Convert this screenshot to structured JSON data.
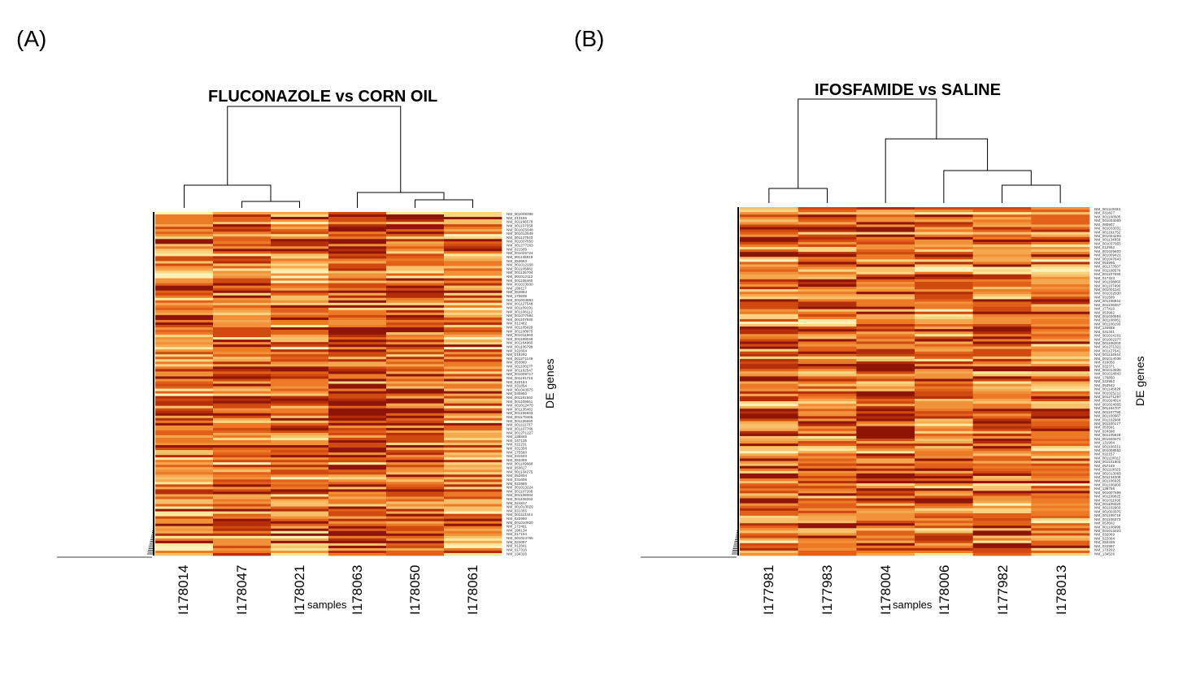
{
  "panels": {
    "a": {
      "letter": "(A)"
    },
    "b": {
      "letter": "(B)"
    }
  },
  "chart_data": [
    {
      "type": "heatmap",
      "panel": "(A)",
      "title": "FLUCONAZOLE vs CORN OIL",
      "xlabel": "samples",
      "ylabel": "DE genes",
      "columns": [
        "I178014",
        "I178047",
        "I178021",
        "I178063",
        "I178050",
        "I178061"
      ],
      "column_dendrogram": "((I178014,(I178047,I178021)),(I178063,(I178050,I178061)))",
      "row_count": 140,
      "row_labels": [
        "NM_001008398",
        "NM_013166",
        "NM_001166578",
        "NM_001107558",
        "NM_001025048",
        "NM_001012549",
        "NM_001127543",
        "NM_001037650",
        "NM_001277263",
        "NM_021589",
        "NM_001025724",
        "NM_001135919",
        "NM_053663",
        "NM_001012158",
        "NM_001105882",
        "NM_001135704",
        "NM_001012112",
        "NM_001106460",
        "NM_001013930",
        "NM_199117",
        "NM_053883",
        "NM_173838",
        "NM_001033883",
        "NM_001127548",
        "NM_001109191",
        "NM_001108112",
        "NM_001077584",
        "NM_001107930",
        "NM_012482",
        "NM_001105929",
        "NM_001100970",
        "NM_001011963",
        "NM_001169046",
        "NM_001164960",
        "NM_001106799",
        "NM_022664",
        "NM_019292",
        "NM_001271149",
        "NM_053880",
        "NM_001100277",
        "NM_001162547",
        "NM_001009717",
        "NM_001191710",
        "NM_022184",
        "NM_031854",
        "NM_001043975",
        "NM_030860",
        "NM_001191562",
        "NM_001109551",
        "NM_001012470",
        "NM_001135481",
        "NM_001166933",
        "NM_001170465",
        "NM_001135550",
        "NM_001112737",
        "NM_001107786",
        "NM_001271227",
        "NM_138846",
        "NM_147135",
        "NM_022231",
        "NM_031358",
        "NM_175580",
        "NM_031503",
        "NM_053359",
        "NM_001109668",
        "NM_053617",
        "NM_001134275",
        "NM_052804",
        "NM_031606",
        "NM_022865",
        "NM_001013224",
        "NM_001107268",
        "NM_001108084",
        "NM_001108262",
        "NM_024817",
        "NM_001013029",
        "NM_031355",
        "NM_001113344",
        "NM_022990",
        "NM_001010920",
        "NM_172461",
        "NM_198134",
        "NM_017154",
        "NM_001024765",
        "NM_022097",
        "NM_012841",
        "NM_017316",
        "NM_134326"
      ]
    },
    {
      "type": "heatmap",
      "panel": "(B)",
      "title": "IFOSFAMIDE vs SALINE",
      "xlabel": "samples",
      "ylabel": "DE genes",
      "columns": [
        "I177981",
        "I177983",
        "I178004",
        "I178006",
        "I177982",
        "I178013"
      ],
      "column_dendrogram": "((I177981,I177983),(I178004,(I178006,(I177982,I178013))))",
      "row_count": 140,
      "row_labels": [
        "NM_001110023",
        "NM_031827",
        "NM_001100505",
        "NM_001033069",
        "NM_080907",
        "NM_001033031",
        "NM_001191752",
        "NM_001024293",
        "NM_001134856",
        "NM_001037955",
        "NM_012552",
        "NM_001025603",
        "NM_001009421",
        "NM_001047843",
        "NM_053996",
        "NM_001173507",
        "NM_001108576",
        "NM_001107690",
        "NM_017323",
        "NM_001108960",
        "NM_001107490",
        "NM_001001181",
        "NM_001032930",
        "NM_031599",
        "NM_001108944",
        "NM_001106067",
        "NM_177419",
        "NM_053982",
        "NM_001030891",
        "NM_001108061",
        "NM_001106193",
        "NM_134689",
        "NM_031341",
        "NM_001014161",
        "NM_001002277",
        "NM_001108203",
        "NM_001271322",
        "NM_001127541",
        "NM_001134644",
        "NM_001014038",
        "NM_016056",
        "NM_022371",
        "NM_001013935",
        "NM_001014843",
        "NM_176850",
        "NM_022952",
        "NM_053942",
        "NM_001145828",
        "NM_001025212",
        "NM_001271297",
        "NM_001024814",
        "NM_001024055",
        "NM_001164707",
        "NM_001107790",
        "NM_001100987",
        "NM_001102988",
        "NM_001100177",
        "NM_053591",
        "NM_024398",
        "NM_001105928",
        "NM_001030974",
        "NM_131904",
        "NM_001108312",
        "NM_001008552",
        "NM_022157",
        "NM_001110022",
        "NM_001101903",
        "NM_057169",
        "NM_001110025",
        "NM_001013068",
        "NM_001134009",
        "NM_001106925",
        "NM_001106903",
        "NM_138758",
        "NM_001007699",
        "NM_001109825",
        "NM_001011930",
        "NM_001109220",
        "NM_001102903",
        "NM_001003976",
        "NM_001109719",
        "NM_001108373",
        "NM_053602",
        "NM_001108999",
        "NM_001013223",
        "NM_032069",
        "NM_022094",
        "NM_053335",
        "NM_022997",
        "NM_173292",
        "NM_134526"
      ]
    }
  ]
}
